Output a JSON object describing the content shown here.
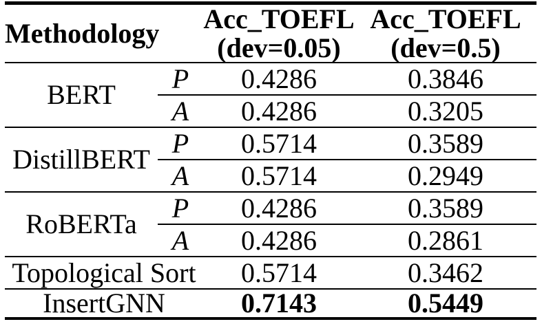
{
  "table": {
    "header": {
      "methodology": "Methodology",
      "col_dev005": {
        "line1": "Acc_TOEFL",
        "line2": "(dev=0.05)"
      },
      "col_dev05": {
        "line1": "Acc_TOEFL",
        "line2": "(dev=0.5)"
      }
    },
    "groups": [
      {
        "method": "BERT",
        "rows": [
          {
            "sub": "P",
            "dev005": "0.4286",
            "dev05": "0.3846"
          },
          {
            "sub": "A",
            "dev005": "0.4286",
            "dev05": "0.3205"
          }
        ]
      },
      {
        "method": "DistillBERT",
        "rows": [
          {
            "sub": "P",
            "dev005": "0.5714",
            "dev05": "0.3589"
          },
          {
            "sub": "A",
            "dev005": "0.5714",
            "dev05": "0.2949"
          }
        ]
      },
      {
        "method": "RoBERTa",
        "rows": [
          {
            "sub": "P",
            "dev005": "0.4286",
            "dev05": "0.3589"
          },
          {
            "sub": "A",
            "dev005": "0.4286",
            "dev05": "0.2861"
          }
        ]
      }
    ],
    "rows": [
      {
        "method": "Topological Sort",
        "dev005": "0.5714",
        "dev05": "0.3462"
      },
      {
        "method": "InsertGNN",
        "dev005": "0.7143",
        "dev05": "0.5449"
      }
    ]
  },
  "colors": {
    "text": "#000000",
    "background": "#ffffff",
    "rules": "#000000"
  }
}
